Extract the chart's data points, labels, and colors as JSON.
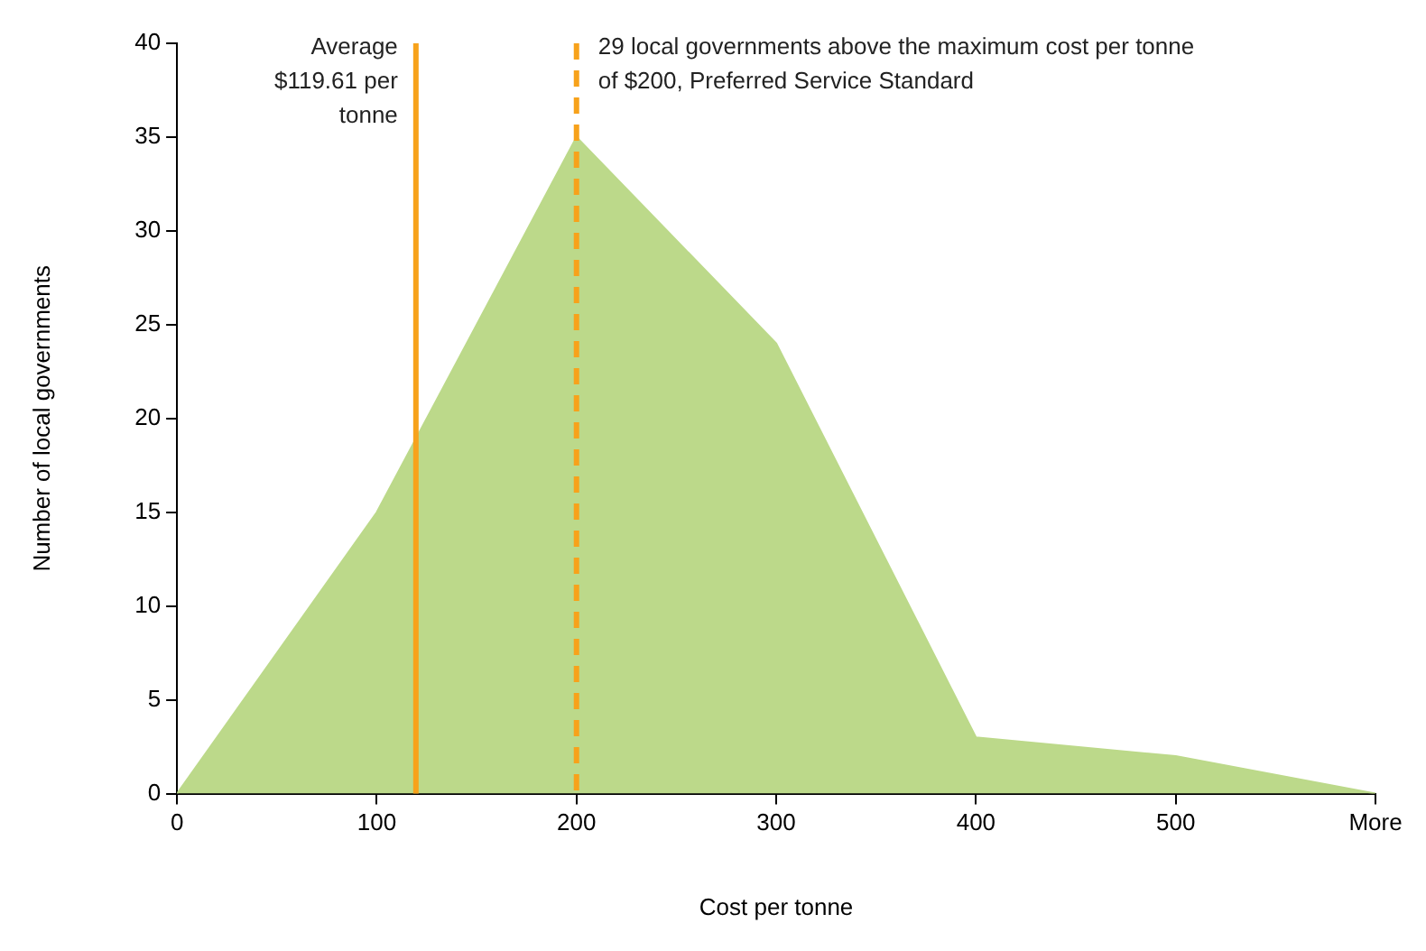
{
  "chart_data": {
    "type": "area",
    "xlabel": "Cost per tonne",
    "ylabel": "Number of local governments",
    "x": [
      0,
      100,
      200,
      300,
      400,
      500,
      600
    ],
    "values": [
      0,
      15,
      35,
      24,
      3,
      2,
      0
    ],
    "color": "#bcd98a",
    "xlim": [
      0,
      600
    ],
    "xticks": [
      0,
      100,
      200,
      300,
      400,
      500,
      {
        "value": 600,
        "label": "More"
      }
    ],
    "ylim": [
      0,
      40
    ],
    "yticks": [
      0,
      5,
      10,
      15,
      20,
      25,
      30,
      35,
      40
    ],
    "grid": false,
    "legend": false,
    "ref_lines": [
      {
        "axis": "x",
        "value": 119.61,
        "label": "Average $119.61 per tonne",
        "color": "#f7a21b",
        "line_style": "solid"
      },
      {
        "axis": "x",
        "value": 200,
        "label": "29 local governments above the maximum cost per tonne of $200, Preferred Service Standard",
        "color": "#f7a21b",
        "line_style": "dashed"
      }
    ]
  }
}
